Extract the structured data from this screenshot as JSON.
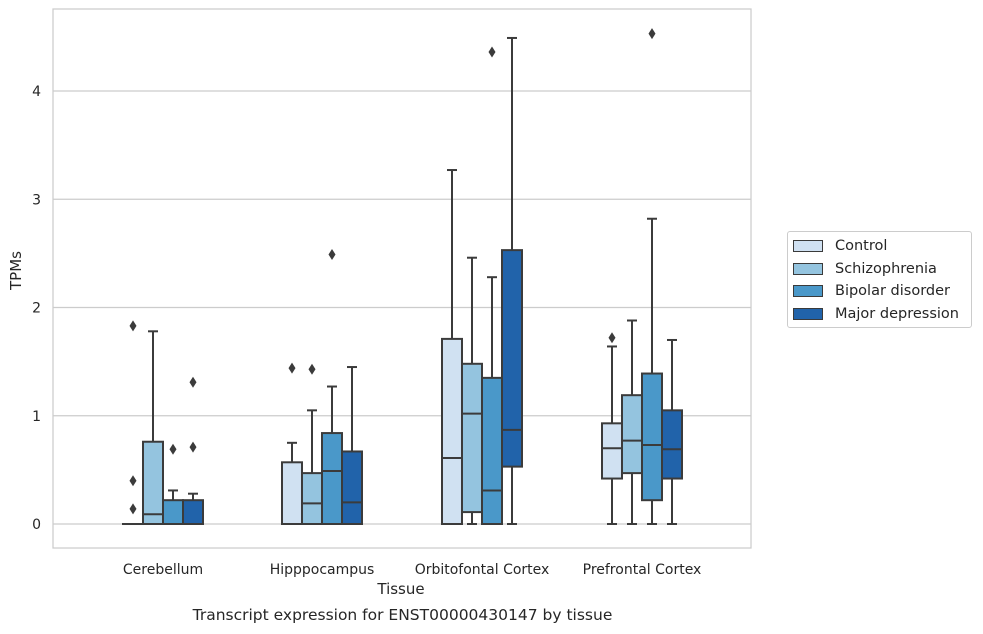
{
  "chart_data": {
    "type": "box",
    "title": "",
    "caption": "Transcript expression for ENST00000430147 by tissue",
    "xlabel": "Tissue",
    "ylabel": "TPMs",
    "ylim": [
      -0.22,
      4.8
    ],
    "yticks": [
      0,
      1,
      2,
      3,
      4
    ],
    "grid": "horizontal",
    "legend_position": "right",
    "categories": [
      "Cerebellum",
      "Hipppocampus",
      "Orbitofontal Cortex",
      "Prefrontal Cortex"
    ],
    "series": [
      {
        "name": "Control",
        "color": "#d0e1f2",
        "boxes": [
          {
            "whisker_low": 0,
            "q1": 0,
            "median": 0,
            "q3": 0,
            "whisker_high": 0,
            "outliers": [
              0.14,
              0.4,
              1.83
            ]
          },
          {
            "whisker_low": 0,
            "q1": 0,
            "median": 0,
            "q3": 0.57,
            "whisker_high": 0.75,
            "outliers": [
              1.44
            ]
          },
          {
            "whisker_low": 0,
            "q1": 0,
            "median": 0.61,
            "q3": 1.71,
            "whisker_high": 3.27,
            "outliers": []
          },
          {
            "whisker_low": 0,
            "q1": 0.42,
            "median": 0.7,
            "q3": 0.93,
            "whisker_high": 1.64,
            "outliers": [
              1.72
            ]
          }
        ]
      },
      {
        "name": "Schizophrenia",
        "color": "#94c4df",
        "boxes": [
          {
            "whisker_low": 0,
            "q1": 0,
            "median": 0.09,
            "q3": 0.76,
            "whisker_high": 1.78,
            "outliers": []
          },
          {
            "whisker_low": 0,
            "q1": 0,
            "median": 0.19,
            "q3": 0.47,
            "whisker_high": 1.05,
            "outliers": [
              1.43
            ]
          },
          {
            "whisker_low": 0,
            "q1": 0.11,
            "median": 1.02,
            "q3": 1.48,
            "whisker_high": 2.46,
            "outliers": []
          },
          {
            "whisker_low": 0,
            "q1": 0.47,
            "median": 0.77,
            "q3": 1.19,
            "whisker_high": 1.88,
            "outliers": []
          }
        ]
      },
      {
        "name": "Bipolar disorder",
        "color": "#4a98c9",
        "boxes": [
          {
            "whisker_low": 0,
            "q1": 0,
            "median": 0,
            "q3": 0.22,
            "whisker_high": 0.31,
            "outliers": [
              0.69
            ]
          },
          {
            "whisker_low": 0,
            "q1": 0,
            "median": 0.49,
            "q3": 0.84,
            "whisker_high": 1.27,
            "outliers": [
              2.49
            ]
          },
          {
            "whisker_low": 0,
            "q1": 0,
            "median": 0.31,
            "q3": 1.35,
            "whisker_high": 2.28,
            "outliers": [
              4.36
            ]
          },
          {
            "whisker_low": 0,
            "q1": 0.22,
            "median": 0.73,
            "q3": 1.39,
            "whisker_high": 2.82,
            "outliers": [
              4.53
            ]
          }
        ]
      },
      {
        "name": "Major depression",
        "color": "#2163aa",
        "boxes": [
          {
            "whisker_low": 0,
            "q1": 0,
            "median": 0,
            "q3": 0.22,
            "whisker_high": 0.28,
            "outliers": [
              0.71,
              1.31
            ]
          },
          {
            "whisker_low": 0,
            "q1": 0,
            "median": 0.2,
            "q3": 0.67,
            "whisker_high": 1.45,
            "outliers": []
          },
          {
            "whisker_low": 0,
            "q1": 0.53,
            "median": 0.87,
            "q3": 2.53,
            "whisker_high": 4.49,
            "outliers": []
          },
          {
            "whisker_low": 0,
            "q1": 0.42,
            "median": 0.69,
            "q3": 1.05,
            "whisker_high": 1.7,
            "outliers": []
          }
        ]
      }
    ]
  }
}
